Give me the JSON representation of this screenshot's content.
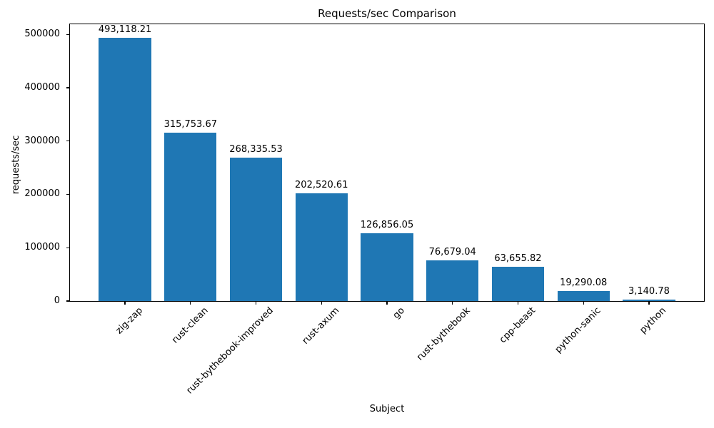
{
  "figure": {
    "background": "#ffffff",
    "text_color": "#000000",
    "axis_color": "#000000"
  },
  "chart_data": {
    "type": "bar",
    "title": "Requests/sec Comparison",
    "xlabel": "Subject",
    "ylabel": "requests/sec",
    "categories": [
      "zig-zap",
      "rust-clean",
      "rust-bythebook-improved",
      "rust-axum",
      "go",
      "rust-bythebook",
      "cpp-beast",
      "python-sanic",
      "python"
    ],
    "values": [
      493118.21,
      315753.67,
      268335.53,
      202520.61,
      126856.05,
      76679.04,
      63655.82,
      19290.08,
      3140.78
    ],
    "bar_labels": [
      "493,118.21",
      "315,753.67",
      "268,335.53",
      "202,520.61",
      "126,856.05",
      "76,679.04",
      "63,655.82",
      "19,290.08",
      "3,140.78"
    ],
    "yticks": [
      0,
      100000,
      200000,
      300000,
      400000,
      500000
    ],
    "ytick_labels": [
      "0",
      "100000",
      "200000",
      "300000",
      "400000",
      "500000"
    ],
    "ylim": [
      0,
      519000
    ],
    "bar_color": "#1f77b4",
    "grid": false,
    "legend_position": "none"
  }
}
